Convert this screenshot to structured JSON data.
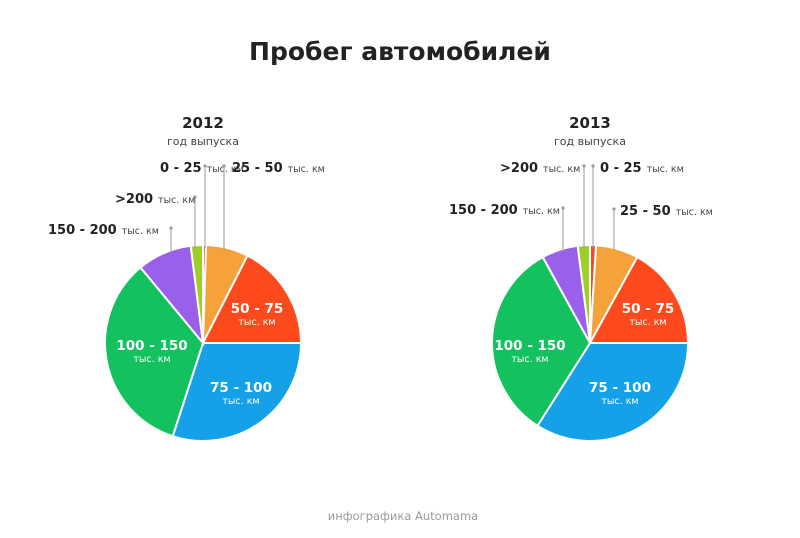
{
  "title": "Пробег автомобилей",
  "credit": "инфографика Automama",
  "colors": {
    "0-25": "#ee4d2b",
    "25-50": "#f6a23a",
    "50-75": "#fd4a1d",
    "75-100": "#15a1e8",
    "100-150": "#13c15f",
    "150-200": "#9a60ea",
    ">200": "#9ecf26"
  },
  "chart_data": [
    {
      "type": "pie",
      "title": "2012",
      "subtitle": "год выпуска",
      "unit": "тыс. км",
      "slices": [
        {
          "key": "0-25",
          "label": "0 - 25",
          "value": 0.5
        },
        {
          "key": "25-50",
          "label": "25 - 50",
          "value": 7
        },
        {
          "key": "50-75",
          "label": "50 - 75",
          "value": 17.5
        },
        {
          "key": "75-100",
          "label": "75 - 100",
          "value": 30
        },
        {
          "key": "100-150",
          "label": "100 - 150",
          "value": 34
        },
        {
          "key": "150-200",
          "label": "150 - 200",
          "value": 9
        },
        {
          "key": ">200",
          "label": ">200",
          "value": 2
        }
      ]
    },
    {
      "type": "pie",
      "title": "2013",
      "subtitle": "год выпуска",
      "unit": "тыс. км",
      "slices": [
        {
          "key": "0-25",
          "label": "0 - 25",
          "value": 1
        },
        {
          "key": "25-50",
          "label": "25 - 50",
          "value": 7
        },
        {
          "key": "50-75",
          "label": "50 - 75",
          "value": 17
        },
        {
          "key": "75-100",
          "label": "75 - 100",
          "value": 34
        },
        {
          "key": "100-150",
          "label": "100 - 150",
          "value": 33
        },
        {
          "key": "150-200",
          "label": "150 - 200",
          "value": 6
        },
        {
          "key": ">200",
          "label": ">200",
          "value": 2
        }
      ]
    }
  ]
}
